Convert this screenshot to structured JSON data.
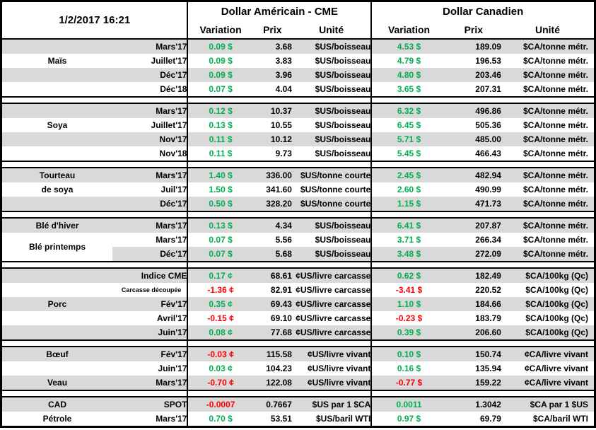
{
  "colors": {
    "green": "#00B050",
    "red": "#FF0000",
    "stripe_gray": "#D9D9D9",
    "border": "#000000"
  },
  "table": {
    "date": "1/2/2017 16:21",
    "us_title": "Dollar Américain - CME",
    "ca_title": "Dollar Canadien",
    "columns": [
      "Variation",
      "Prix",
      "Unité"
    ],
    "sections": [
      {
        "name": "mais",
        "rows": [
          {
            "label": "",
            "month": "Mars'17",
            "us_var": "0.09 $",
            "us_prix": "3.68",
            "us_unit": "$US/boisseau",
            "ca_var": "4.53 $",
            "ca_prix": "189.09",
            "ca_unit": "$CA/tonne métr."
          },
          {
            "label": "Maïs",
            "month": "Juillet'17",
            "us_var": "0.09 $",
            "us_prix": "3.83",
            "us_unit": "$US/boisseau",
            "ca_var": "4.79 $",
            "ca_prix": "196.53",
            "ca_unit": "$CA/tonne métr."
          },
          {
            "label": "",
            "month": "Déc'17",
            "us_var": "0.09 $",
            "us_prix": "3.96",
            "us_unit": "$US/boisseau",
            "ca_var": "4.80 $",
            "ca_prix": "203.46",
            "ca_unit": "$CA/tonne métr."
          },
          {
            "label": "",
            "month": "Déc'18",
            "us_var": "0.07 $",
            "us_prix": "4.04",
            "us_unit": "$US/boisseau",
            "ca_var": "3.65 $",
            "ca_prix": "207.31",
            "ca_unit": "$CA/tonne métr."
          }
        ]
      },
      {
        "name": "soya",
        "rows": [
          {
            "label": "",
            "month": "Mars'17",
            "us_var": "0.12 $",
            "us_prix": "10.37",
            "us_unit": "$US/boisseau",
            "ca_var": "6.32 $",
            "ca_prix": "496.86",
            "ca_unit": "$CA/tonne métr."
          },
          {
            "label": "Soya",
            "month": "Juillet'17",
            "us_var": "0.13 $",
            "us_prix": "10.55",
            "us_unit": "$US/boisseau",
            "ca_var": "6.45 $",
            "ca_prix": "505.36",
            "ca_unit": "$CA/tonne métr."
          },
          {
            "label": "",
            "month": "Nov'17",
            "us_var": "0.11 $",
            "us_prix": "10.12",
            "us_unit": "$US/boisseau",
            "ca_var": "5.71 $",
            "ca_prix": "485.00",
            "ca_unit": "$CA/tonne métr."
          },
          {
            "label": "",
            "month": "Nov'18",
            "us_var": "0.11 $",
            "us_prix": "9.73",
            "us_unit": "$US/boisseau",
            "ca_var": "5.45 $",
            "ca_prix": "466.43",
            "ca_unit": "$CA/tonne métr."
          }
        ]
      },
      {
        "name": "tourteau-de-soya",
        "rows": [
          {
            "label": "Tourteau",
            "month": "Mars'17",
            "us_var": "1.40 $",
            "us_prix": "336.00",
            "us_unit": "$US/tonne courte",
            "ca_var": "2.45 $",
            "ca_prix": "482.94",
            "ca_unit": "$CA/tonne métr."
          },
          {
            "label": "de soya",
            "month": "Juil'17",
            "us_var": "1.50 $",
            "us_prix": "341.60",
            "us_unit": "$US/tonne courte",
            "ca_var": "2.60 $",
            "ca_prix": "490.99",
            "ca_unit": "$CA/tonne métr."
          },
          {
            "label": "",
            "month": "Déc'17",
            "us_var": "0.50 $",
            "us_prix": "328.20",
            "us_unit": "$US/tonne courte",
            "ca_var": "1.15 $",
            "ca_prix": "471.73",
            "ca_unit": "$CA/tonne métr."
          }
        ]
      },
      {
        "name": "ble",
        "rows": [
          {
            "label": "Blé d'hiver",
            "month": "Mars'17",
            "us_var": "0.13 $",
            "us_prix": "4.34",
            "us_unit": "$US/boisseau",
            "ca_var": "6.41 $",
            "ca_prix": "207.87",
            "ca_unit": "$CA/tonne métr."
          },
          {
            "label": "Blé printemps",
            "rowspan": 2,
            "label_nofill": true,
            "month": "Mars'17",
            "us_var": "0.07 $",
            "us_prix": "5.56",
            "us_unit": "$US/boisseau",
            "ca_var": "3.71 $",
            "ca_prix": "266.34",
            "ca_unit": "$CA/tonne métr."
          },
          {
            "label": null,
            "month": "Déc'17",
            "us_var": "0.07 $",
            "us_prix": "5.68",
            "us_unit": "$US/boisseau",
            "ca_var": "3.48 $",
            "ca_prix": "272.09",
            "ca_unit": "$CA/tonne métr."
          }
        ]
      },
      {
        "name": "porc",
        "rows": [
          {
            "label": "",
            "month": "Indice CME",
            "us_var": "0.17 ¢",
            "us_prix": "68.61",
            "us_unit": "¢US/livre carcasse",
            "ca_var": "0.62 $",
            "ca_prix": "182.49",
            "ca_unit": "$CA/100kg (Qc)"
          },
          {
            "label": "",
            "month": "Carcasse découpée",
            "month_small": true,
            "us_var": "-1.36 ¢",
            "us_prix": "82.91",
            "us_unit": "¢US/livre carcasse",
            "ca_var": "-3.41 $",
            "ca_prix": "220.52",
            "ca_unit": "$CA/100kg (Qc)"
          },
          {
            "label": "Porc",
            "month": "Fév'17",
            "us_var": "0.35 ¢",
            "us_prix": "69.43",
            "us_unit": "¢US/livre carcasse",
            "ca_var": "1.10 $",
            "ca_prix": "184.66",
            "ca_unit": "$CA/100kg (Qc)"
          },
          {
            "label": "",
            "month": "Avril'17",
            "us_var": "-0.15 ¢",
            "us_prix": "69.10",
            "us_unit": "¢US/livre carcasse",
            "ca_var": "-0.23 $",
            "ca_prix": "183.79",
            "ca_unit": "$CA/100kg (Qc)"
          },
          {
            "label": "",
            "month": "Juin'17",
            "us_var": "0.08 ¢",
            "us_prix": "77.68",
            "us_unit": "¢US/livre carcasse",
            "ca_var": "0.39 $",
            "ca_prix": "206.60",
            "ca_unit": "$CA/100kg (Qc)"
          }
        ]
      },
      {
        "name": "boeuf-veau",
        "rows": [
          {
            "label": "Bœuf",
            "month": "Fév'17",
            "us_var": "-0.03 ¢",
            "us_prix": "115.58",
            "us_unit": "¢US/livre vivant",
            "ca_var": "0.10 $",
            "ca_prix": "150.74",
            "ca_unit": "¢CA/livre vivant"
          },
          {
            "label": "",
            "month": "Juin'17",
            "us_var": "0.03 ¢",
            "us_prix": "104.23",
            "us_unit": "¢US/livre vivant",
            "ca_var": "0.16 $",
            "ca_prix": "135.94",
            "ca_unit": "¢CA/livre vivant"
          },
          {
            "label": "Veau",
            "month": "Mars'17",
            "us_var": "-0.70 ¢",
            "us_prix": "122.08",
            "us_unit": "¢US/livre vivant",
            "ca_var": "-0.77 $",
            "ca_prix": "159.22",
            "ca_unit": "¢CA/livre vivant"
          }
        ]
      },
      {
        "name": "cad-petrole",
        "rows": [
          {
            "label": "CAD",
            "month": "SPOT",
            "us_var": "-0.0007",
            "us_prix": "0.7667",
            "us_unit": "$US par 1 $CA",
            "ca_var": "0.0011",
            "ca_prix": "1.3042",
            "ca_unit": "$CA par 1 $US"
          },
          {
            "label": "Pétrole",
            "month": "Mars'17",
            "us_var": "0.70 $",
            "us_prix": "53.51",
            "us_unit": "$US/baril WTI",
            "ca_var": "0.97 $",
            "ca_prix": "69.79",
            "ca_unit": "$CA/baril WTI"
          }
        ]
      }
    ]
  }
}
